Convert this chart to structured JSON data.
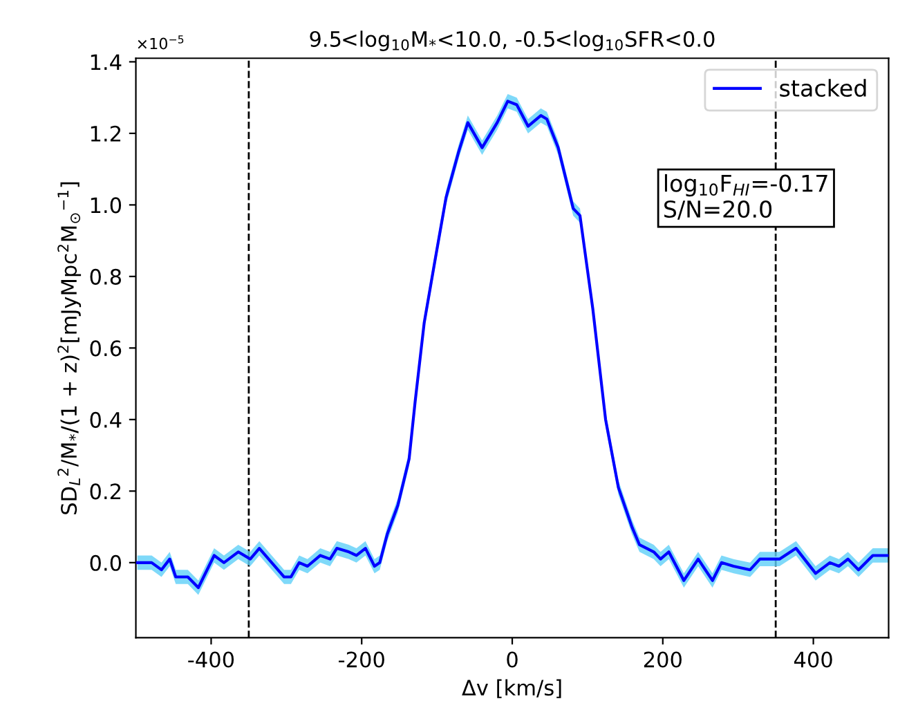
{
  "chart_data": {
    "type": "line",
    "title": "9.5<log$_{10}$M$_{*}$<10.0, -0.5<log$_{10}$SFR<0.0",
    "xlabel": "Δv [km/s]",
    "ylabel": "SD$_{L}$$^{2}$/M$_{*}$/(1 + z)$^{2}$[mJyMpc$^{2}$M$_{⊙}$$^{−1}$]",
    "annotations": [
      "×10$^{−5}$",
      "log$_{10}$F$_{HI}$=-0.17\nS/N=20.0"
    ],
    "series": [
      {
        "name": "stacked",
        "color": "#0000ff",
        "x": [
          -498,
          -479,
          -466,
          -455,
          -447,
          -431,
          -417,
          -396,
          -383,
          -364,
          -348,
          -336,
          -303,
          -294,
          -283,
          -272,
          -255,
          -242,
          -233,
          -217,
          -207,
          -195,
          -183,
          -176,
          -166,
          -152,
          -137,
          -129,
          -117,
          -103,
          -88,
          -71,
          -59,
          -40,
          -20,
          -6,
          6,
          21,
          38,
          46,
          61,
          81,
          90,
          107,
          124,
          141,
          159,
          169,
          188,
          197,
          208,
          228,
          247,
          266,
          278,
          294,
          316,
          329,
          355,
          377,
          403,
          422,
          434,
          446,
          460,
          479,
          500
        ],
        "values": [
          0.0,
          0.0,
          -0.02,
          0.01,
          -0.04,
          -0.04,
          -0.07,
          0.02,
          0.0,
          0.03,
          0.01,
          0.04,
          -0.04,
          -0.04,
          0.0,
          -0.01,
          0.02,
          0.01,
          0.04,
          0.03,
          0.02,
          0.04,
          -0.01,
          0.0,
          0.08,
          0.16,
          0.29,
          0.45,
          0.67,
          0.84,
          1.02,
          1.15,
          1.23,
          1.16,
          1.23,
          1.29,
          1.28,
          1.22,
          1.25,
          1.24,
          1.16,
          0.99,
          0.97,
          0.71,
          0.4,
          0.21,
          0.1,
          0.05,
          0.03,
          0.01,
          0.03,
          -0.05,
          0.01,
          -0.05,
          0.0,
          -0.01,
          -0.02,
          0.01,
          0.01,
          0.04,
          -0.03,
          0.0,
          -0.01,
          0.01,
          -0.02,
          0.02,
          0.02
        ],
        "lower": [
          -0.02,
          -0.02,
          -0.04,
          -0.01,
          -0.06,
          -0.06,
          -0.09,
          0.0,
          -0.02,
          0.01,
          -0.01,
          0.02,
          -0.06,
          -0.06,
          -0.02,
          -0.03,
          0.0,
          -0.01,
          0.02,
          0.01,
          0.0,
          0.02,
          -0.03,
          -0.02,
          0.06,
          0.14,
          0.27,
          0.43,
          0.65,
          0.82,
          1.0,
          1.13,
          1.21,
          1.14,
          1.21,
          1.27,
          1.26,
          1.2,
          1.23,
          1.22,
          1.14,
          0.97,
          0.95,
          0.69,
          0.38,
          0.19,
          0.08,
          0.03,
          0.01,
          -0.01,
          0.01,
          -0.07,
          -0.01,
          -0.07,
          -0.02,
          -0.03,
          -0.04,
          -0.01,
          -0.01,
          0.02,
          -0.05,
          -0.02,
          -0.03,
          -0.01,
          -0.04,
          0.0,
          0.0
        ],
        "upper": [
          0.02,
          0.02,
          0.0,
          0.03,
          -0.02,
          -0.02,
          -0.05,
          0.04,
          0.02,
          0.05,
          0.03,
          0.06,
          -0.02,
          -0.02,
          0.02,
          0.01,
          0.04,
          0.03,
          0.06,
          0.05,
          0.04,
          0.06,
          0.01,
          0.02,
          0.1,
          0.18,
          0.31,
          0.47,
          0.69,
          0.86,
          1.04,
          1.17,
          1.25,
          1.18,
          1.25,
          1.31,
          1.3,
          1.24,
          1.27,
          1.26,
          1.18,
          1.01,
          0.99,
          0.73,
          0.42,
          0.23,
          0.12,
          0.07,
          0.05,
          0.03,
          0.05,
          -0.03,
          0.03,
          -0.03,
          0.02,
          0.01,
          0.0,
          0.03,
          0.03,
          0.06,
          -0.01,
          0.02,
          0.01,
          0.03,
          0.0,
          0.04,
          0.04
        ]
      }
    ],
    "xlim": [
      -500,
      500
    ],
    "ylim": [
      -0.21,
      1.41
    ],
    "xticks": [
      -400,
      -200,
      0,
      200,
      400
    ],
    "yticks": [
      {
        "value": 0,
        "label": "0.0"
      },
      {
        "value": 0.2,
        "label": "0.2"
      },
      {
        "value": 0.4,
        "label": "0.4"
      },
      {
        "value": 0.6,
        "label": "0.6"
      },
      {
        "value": 0.8,
        "label": "0.8"
      },
      {
        "value": 1.0,
        "label": "1.0"
      },
      {
        "value": 1.2,
        "label": "1.2"
      },
      {
        "value": 1.4,
        "label": "1.4"
      }
    ],
    "ref_lines": [
      {
        "axis": "x",
        "value": -350,
        "color": "#000000",
        "line_style": "dashed"
      },
      {
        "axis": "x",
        "value": 350,
        "color": "#000000",
        "line_style": "dashed"
      }
    ],
    "legend": "top right",
    "grid": false,
    "marker": "none",
    "line_style": "solid"
  }
}
